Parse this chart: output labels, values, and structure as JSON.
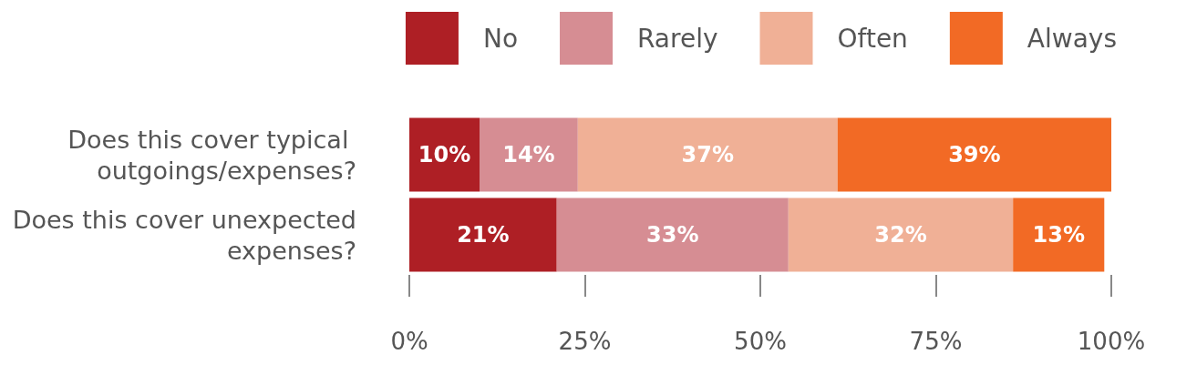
{
  "chart_data": {
    "type": "bar",
    "orientation": "horizontal",
    "stacked": true,
    "categories": [
      "Does this cover typical outgoings/expenses?",
      "Does this cover unexpected expenses?"
    ],
    "series": [
      {
        "name": "No",
        "color": "#ae1f25",
        "values": [
          10,
          21
        ],
        "value_labels": [
          "10%",
          "21%"
        ]
      },
      {
        "name": "Rarely",
        "color": "#d68d93",
        "values": [
          14,
          33
        ],
        "value_labels": [
          "14%",
          "33%"
        ]
      },
      {
        "name": "Often",
        "color": "#f0b096",
        "values": [
          37,
          32
        ],
        "value_labels": [
          "37%",
          "32%"
        ]
      },
      {
        "name": "Always",
        "color": "#f26a25",
        "values": [
          39,
          13
        ],
        "value_labels": [
          "39%",
          "13%"
        ]
      }
    ],
    "xlim": [
      0,
      100
    ],
    "xticks": [
      {
        "value": 0,
        "label": "0%"
      },
      {
        "value": 25,
        "label": "25%"
      },
      {
        "value": 50,
        "label": "50%"
      },
      {
        "value": 75,
        "label": "75%"
      },
      {
        "value": 100,
        "label": "100%"
      }
    ],
    "grid": false,
    "legend": "top right"
  }
}
